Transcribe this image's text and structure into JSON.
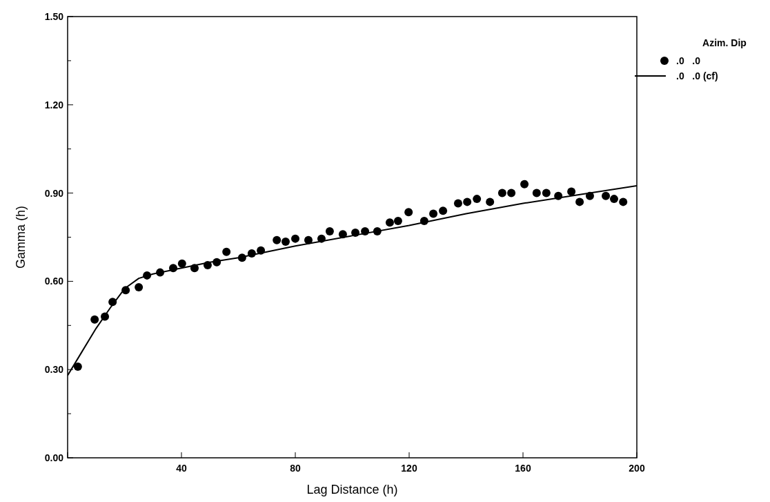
{
  "chart_data": {
    "type": "scatter",
    "xlabel": "Lag Distance (h)",
    "ylabel": "Gamma (h)",
    "legend_title": "Azim. Dip",
    "legend": "top right",
    "grid": false,
    "xlim": [
      0,
      200
    ],
    "ylim": [
      0,
      1.5
    ],
    "xticks": [
      {
        "value": 0,
        "label": null
      },
      40,
      80,
      120,
      160,
      200
    ],
    "yticks": [
      {
        "value": 0,
        "label": "0.00"
      },
      {
        "value": 0.15,
        "label": null
      },
      {
        "value": 0.3,
        "label": "0.30"
      },
      {
        "value": 0.45,
        "label": null
      },
      {
        "value": 0.6,
        "label": "0.60"
      },
      {
        "value": 0.75,
        "label": null
      },
      {
        "value": 0.9,
        "label": "0.90"
      },
      {
        "value": 1.05,
        "label": null
      },
      {
        "value": 1.2,
        "label": "1.20"
      },
      {
        "value": 1.35,
        "label": null
      },
      {
        "value": 1.5,
        "label": "1.50"
      }
    ],
    "series": [
      {
        "name": ".0   .0",
        "marker": "circle",
        "color": "#000000",
        "x": [
          3.6,
          9.5,
          13.1,
          15.8,
          20.4,
          25,
          27.9,
          32.5,
          37.1,
          40.2,
          44.6,
          49.2,
          52.4,
          55.8,
          61.3,
          64.7,
          67.9,
          73.5,
          76.6,
          80,
          84.6,
          89.2,
          92.1,
          96.7,
          101.1,
          104.5,
          108.8,
          113.2,
          116.1,
          119.8,
          125.3,
          128.5,
          131.9,
          137.2,
          140.4,
          143.8,
          148.4,
          152.7,
          155.9,
          160.5,
          164.8,
          168.2,
          172.4,
          177,
          179.9,
          183.5,
          189.1,
          192,
          195.2
        ],
        "values": [
          0.31,
          0.47,
          0.48,
          0.53,
          0.57,
          0.58,
          0.62,
          0.63,
          0.645,
          0.66,
          0.645,
          0.655,
          0.665,
          0.7,
          0.68,
          0.695,
          0.705,
          0.74,
          0.735,
          0.745,
          0.74,
          0.745,
          0.77,
          0.76,
          0.765,
          0.77,
          0.77,
          0.8,
          0.805,
          0.835,
          0.805,
          0.83,
          0.84,
          0.865,
          0.87,
          0.88,
          0.87,
          0.9,
          0.9,
          0.93,
          0.9,
          0.9,
          0.89,
          0.905,
          0.87,
          0.89,
          0.89,
          0.88,
          0.87
        ]
      },
      {
        "name": ".0   .0 (cf)",
        "type": "line",
        "marker": "none",
        "line_style": "solid",
        "color": "#000000",
        "x": [
          0,
          5,
          10,
          15,
          20,
          25,
          30,
          40,
          50,
          60,
          80,
          100,
          120,
          140,
          160,
          180,
          200
        ],
        "values": [
          0.28,
          0.36,
          0.44,
          0.51,
          0.575,
          0.61,
          0.625,
          0.645,
          0.665,
          0.68,
          0.72,
          0.755,
          0.79,
          0.83,
          0.865,
          0.895,
          0.925
        ]
      }
    ]
  }
}
